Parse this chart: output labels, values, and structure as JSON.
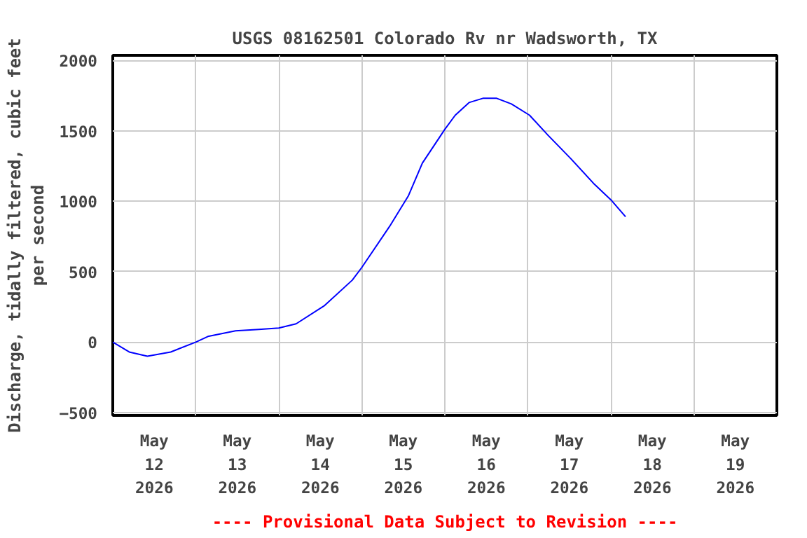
{
  "chart_data": {
    "type": "line",
    "title": "USGS 08162501 Colorado Rv nr Wadsworth, TX",
    "ylabel": "Discharge, tidally filtered, cubic feet\nper second",
    "annotations": [
      "---- Provisional Data Subject to Revision ----"
    ],
    "x": [
      "2026-05-12T00:00",
      "2026-05-12T04:45",
      "2026-05-12T10:00",
      "2026-05-12T16:45",
      "2026-05-13T00:00",
      "2026-05-13T03:30",
      "2026-05-13T11:30",
      "2026-05-13T18:15",
      "2026-05-14T00:00",
      "2026-05-14T05:00",
      "2026-05-14T13:15",
      "2026-05-14T21:15",
      "2026-05-15T00:00",
      "2026-05-15T08:00",
      "2026-05-15T13:30",
      "2026-05-15T17:30",
      "2026-05-16T00:00",
      "2026-05-16T03:00",
      "2026-05-16T07:00",
      "2026-05-16T11:00",
      "2026-05-16T15:00",
      "2026-05-16T19:15",
      "2026-05-17T00:30",
      "2026-05-17T05:45",
      "2026-05-17T12:30",
      "2026-05-17T19:15",
      "2026-05-18T00:00",
      "2026-05-18T04:15"
    ],
    "series": [
      {
        "color": "#0000ff",
        "values": [
          0,
          -70,
          -100,
          -70,
          0,
          40,
          80,
          90,
          100,
          130,
          260,
          440,
          530,
          820,
          1040,
          1270,
          1510,
          1610,
          1700,
          1730,
          1730,
          1690,
          1610,
          1470,
          1300,
          1120,
          1010,
          890
        ]
      }
    ],
    "xlim": [
      "2026-05-12T00:00",
      "2026-05-20T00:00"
    ],
    "xticks": [
      {
        "value": "2026-05-12T12:00",
        "label": "May\n12\n2026"
      },
      {
        "value": "2026-05-13T00:00",
        "label": null
      },
      {
        "value": "2026-05-13T12:00",
        "label": "May\n13\n2026"
      },
      {
        "value": "2026-05-14T00:00",
        "label": null
      },
      {
        "value": "2026-05-14T12:00",
        "label": "May\n14\n2026"
      },
      {
        "value": "2026-05-15T00:00",
        "label": null
      },
      {
        "value": "2026-05-15T12:00",
        "label": "May\n15\n2026"
      },
      {
        "value": "2026-05-16T00:00",
        "label": null
      },
      {
        "value": "2026-05-16T12:00",
        "label": "May\n16\n2026"
      },
      {
        "value": "2026-05-17T00:00",
        "label": null
      },
      {
        "value": "2026-05-17T12:00",
        "label": "May\n17\n2026"
      },
      {
        "value": "2026-05-18T00:00",
        "label": null
      },
      {
        "value": "2026-05-18T12:00",
        "label": "May\n18\n2026"
      },
      {
        "value": "2026-05-19T00:00",
        "label": null
      },
      {
        "value": "2026-05-19T12:00",
        "label": "May\n19\n2026"
      }
    ],
    "ylim": [
      -520,
      2035
    ],
    "yticks": [
      -500,
      0,
      500,
      1000,
      1500,
      2000
    ],
    "grid": true,
    "marker": "none",
    "line_style": "solid"
  }
}
